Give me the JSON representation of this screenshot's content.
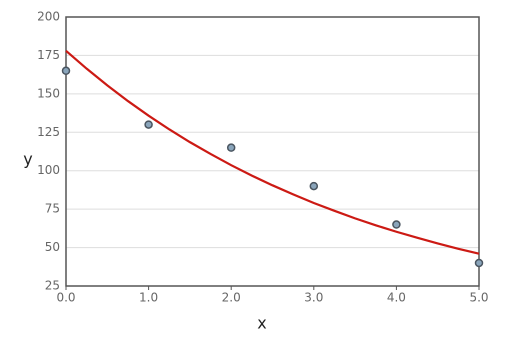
{
  "chart_data": {
    "type": "scatter",
    "x_label": "x",
    "y_label": "y",
    "x": [
      0,
      1,
      2,
      3,
      4,
      5
    ],
    "values": [
      165,
      130,
      115,
      90,
      65,
      40
    ],
    "color": "#8aa5bb",
    "fit": {
      "type": "line",
      "color": "#cc1a14",
      "x": [
        0,
        0.25,
        0.5,
        0.75,
        1,
        1.25,
        1.5,
        1.75,
        2,
        2.25,
        2.5,
        2.75,
        3,
        3.25,
        3.5,
        3.75,
        4,
        4.25,
        4.5,
        4.75,
        5
      ],
      "values": [
        178,
        166.4,
        155.5,
        145.3,
        135.8,
        126.9,
        118.6,
        110.9,
        103.6,
        96.8,
        90.5,
        84.6,
        79.0,
        73.9,
        69.0,
        64.5,
        60.3,
        56.4,
        52.7,
        49.2,
        46.0
      ]
    },
    "xlim": [
      0,
      5
    ],
    "xticks": [
      {
        "value": 0,
        "label": "0.0"
      },
      {
        "value": 1,
        "label": "1.0"
      },
      {
        "value": 2,
        "label": "2.0"
      },
      {
        "value": 3,
        "label": "3.0"
      },
      {
        "value": 4,
        "label": "4.0"
      },
      {
        "value": 5,
        "label": "5.0"
      }
    ],
    "ylim": [
      25,
      200
    ],
    "yticks": [
      25,
      50,
      75,
      100,
      125,
      150,
      175,
      200
    ],
    "grid": true
  }
}
